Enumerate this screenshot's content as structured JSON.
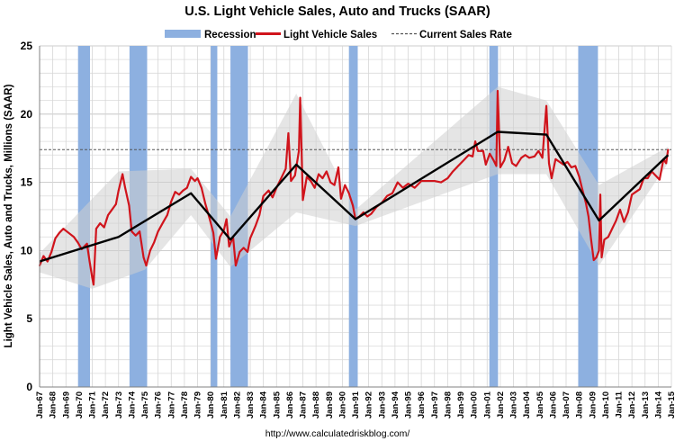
{
  "chart_data": {
    "type": "line",
    "title": "U.S. Light Vehicle Sales, Auto and Trucks (SAAR)",
    "ylabel": "Light Vehicle Sales, Auto and Trucks, Millions (SAAR)",
    "xlabel": "",
    "source": "http://www.calculatedriskblog.com/",
    "ylim": [
      0,
      25
    ],
    "yticks": [
      0,
      5,
      10,
      15,
      20,
      25
    ],
    "xlim": [
      1967,
      2015
    ],
    "xticks": [
      "Jan-67",
      "Jan-68",
      "Jan-69",
      "Jan-70",
      "Jan-71",
      "Jan-72",
      "Jan-73",
      "Jan-74",
      "Jan-75",
      "Jan-76",
      "Jan-77",
      "Jan-78",
      "Jan-79",
      "Jan-80",
      "Jan-81",
      "Jan-82",
      "Jan-83",
      "Jan-84",
      "Jan-85",
      "Jan-86",
      "Jan-87",
      "Jan-88",
      "Jan-89",
      "Jan-90",
      "Jan-91",
      "Jan-92",
      "Jan-93",
      "Jan-94",
      "Jan-95",
      "Jan-96",
      "Jan-97",
      "Jan-98",
      "Jan-99",
      "Jan-00",
      "Jan-01",
      "Jan-02",
      "Jan-03",
      "Jan-04",
      "Jan-05",
      "Jan-06",
      "Jan-07",
      "Jan-08",
      "Jan-09",
      "Jan-10",
      "Jan-11",
      "Jan-12",
      "Jan-13",
      "Jan-14",
      "Jan-15"
    ],
    "grid": true,
    "legend": {
      "placement": "top",
      "items": [
        "Recession",
        "Light Vehicle Sales",
        "Current Sales Rate"
      ]
    },
    "colors": {
      "recession": "#8db0e0",
      "sales": "#d0141c",
      "trend": "#000000",
      "band": "#cfcfcf",
      "current_rate": "#555555"
    },
    "current_sales_rate": 17.4,
    "recessions": [
      {
        "start": 1969.92,
        "end": 1970.83
      },
      {
        "start": 1973.83,
        "end": 1975.17
      },
      {
        "start": 1980.0,
        "end": 1980.5
      },
      {
        "start": 1981.5,
        "end": 1982.83
      },
      {
        "start": 1990.5,
        "end": 1991.17
      },
      {
        "start": 2001.17,
        "end": 2001.83
      },
      {
        "start": 2007.92,
        "end": 2009.42
      }
    ],
    "series": [
      {
        "name": "Light Vehicle Sales",
        "points": [
          [
            1967.0,
            8.9
          ],
          [
            1967.3,
            9.6
          ],
          [
            1967.6,
            9.2
          ],
          [
            1967.9,
            9.9
          ],
          [
            1968.2,
            10.9
          ],
          [
            1968.5,
            11.3
          ],
          [
            1968.8,
            11.6
          ],
          [
            1969.2,
            11.3
          ],
          [
            1969.6,
            11.0
          ],
          [
            1969.9,
            10.6
          ],
          [
            1970.2,
            10.1
          ],
          [
            1970.6,
            10.5
          ],
          [
            1970.8,
            9.2
          ],
          [
            1971.0,
            8.0
          ],
          [
            1971.1,
            7.5
          ],
          [
            1971.3,
            11.6
          ],
          [
            1971.6,
            12.0
          ],
          [
            1971.9,
            11.7
          ],
          [
            1972.2,
            12.6
          ],
          [
            1972.5,
            13.0
          ],
          [
            1972.8,
            13.4
          ],
          [
            1973.0,
            14.4
          ],
          [
            1973.3,
            15.6
          ],
          [
            1973.5,
            14.6
          ],
          [
            1973.8,
            13.3
          ],
          [
            1974.0,
            11.4
          ],
          [
            1974.3,
            11.1
          ],
          [
            1974.6,
            11.4
          ],
          [
            1974.9,
            9.5
          ],
          [
            1975.1,
            8.9
          ],
          [
            1975.4,
            10.0
          ],
          [
            1975.7,
            10.6
          ],
          [
            1976.0,
            11.4
          ],
          [
            1976.4,
            12.1
          ],
          [
            1976.7,
            12.6
          ],
          [
            1977.0,
            13.6
          ],
          [
            1977.3,
            14.3
          ],
          [
            1977.6,
            14.1
          ],
          [
            1977.9,
            14.4
          ],
          [
            1978.2,
            14.6
          ],
          [
            1978.5,
            15.4
          ],
          [
            1978.8,
            15.1
          ],
          [
            1979.0,
            15.3
          ],
          [
            1979.3,
            14.6
          ],
          [
            1979.6,
            13.4
          ],
          [
            1979.9,
            12.4
          ],
          [
            1980.2,
            11.3
          ],
          [
            1980.4,
            9.4
          ],
          [
            1980.7,
            11.0
          ],
          [
            1981.0,
            11.5
          ],
          [
            1981.2,
            12.3
          ],
          [
            1981.4,
            10.3
          ],
          [
            1981.7,
            11.0
          ],
          [
            1981.9,
            8.9
          ],
          [
            1982.2,
            9.9
          ],
          [
            1982.5,
            10.2
          ],
          [
            1982.8,
            9.9
          ],
          [
            1983.0,
            10.9
          ],
          [
            1983.4,
            11.8
          ],
          [
            1983.7,
            12.6
          ],
          [
            1984.0,
            14.0
          ],
          [
            1984.4,
            14.4
          ],
          [
            1984.7,
            13.9
          ],
          [
            1985.0,
            14.6
          ],
          [
            1985.3,
            15.2
          ],
          [
            1985.7,
            16.0
          ],
          [
            1985.9,
            18.6
          ],
          [
            1986.1,
            15.1
          ],
          [
            1986.4,
            15.5
          ],
          [
            1986.7,
            17.3
          ],
          [
            1986.8,
            21.2
          ],
          [
            1987.0,
            13.7
          ],
          [
            1987.3,
            15.4
          ],
          [
            1987.6,
            15.1
          ],
          [
            1987.9,
            14.6
          ],
          [
            1988.2,
            15.6
          ],
          [
            1988.5,
            15.3
          ],
          [
            1988.8,
            15.8
          ],
          [
            1989.1,
            15.0
          ],
          [
            1989.4,
            14.8
          ],
          [
            1989.7,
            16.1
          ],
          [
            1989.9,
            13.8
          ],
          [
            1990.2,
            14.8
          ],
          [
            1990.5,
            14.2
          ],
          [
            1990.8,
            13.3
          ],
          [
            1991.0,
            12.3
          ],
          [
            1991.3,
            12.5
          ],
          [
            1991.6,
            12.8
          ],
          [
            1991.9,
            12.5
          ],
          [
            1992.2,
            12.7
          ],
          [
            1992.6,
            13.2
          ],
          [
            1993.0,
            13.5
          ],
          [
            1993.4,
            14.0
          ],
          [
            1993.8,
            14.2
          ],
          [
            1994.2,
            15.0
          ],
          [
            1994.6,
            14.6
          ],
          [
            1995.0,
            14.9
          ],
          [
            1995.5,
            14.6
          ],
          [
            1996.0,
            15.1
          ],
          [
            1996.5,
            15.1
          ],
          [
            1997.0,
            15.1
          ],
          [
            1997.5,
            15.0
          ],
          [
            1998.0,
            15.3
          ],
          [
            1998.4,
            15.8
          ],
          [
            1998.8,
            16.2
          ],
          [
            1999.2,
            16.6
          ],
          [
            1999.6,
            17.0
          ],
          [
            1999.9,
            16.9
          ],
          [
            2000.1,
            18.0
          ],
          [
            2000.3,
            17.3
          ],
          [
            2000.7,
            17.3
          ],
          [
            2000.9,
            16.3
          ],
          [
            2001.2,
            17.1
          ],
          [
            2001.5,
            16.6
          ],
          [
            2001.7,
            16.2
          ],
          [
            2001.8,
            21.7
          ],
          [
            2002.0,
            16.1
          ],
          [
            2002.3,
            16.6
          ],
          [
            2002.6,
            17.6
          ],
          [
            2002.9,
            16.4
          ],
          [
            2003.2,
            16.2
          ],
          [
            2003.6,
            16.8
          ],
          [
            2003.9,
            17.0
          ],
          [
            2004.2,
            16.8
          ],
          [
            2004.6,
            16.9
          ],
          [
            2004.9,
            17.3
          ],
          [
            2005.2,
            16.8
          ],
          [
            2005.5,
            20.6
          ],
          [
            2005.7,
            16.4
          ],
          [
            2005.9,
            15.3
          ],
          [
            2006.2,
            16.7
          ],
          [
            2006.5,
            16.5
          ],
          [
            2006.8,
            16.3
          ],
          [
            2007.1,
            16.5
          ],
          [
            2007.4,
            16.1
          ],
          [
            2007.7,
            16.2
          ],
          [
            2008.0,
            15.4
          ],
          [
            2008.2,
            14.6
          ],
          [
            2008.5,
            13.5
          ],
          [
            2008.7,
            12.5
          ],
          [
            2008.9,
            10.8
          ],
          [
            2009.1,
            9.3
          ],
          [
            2009.3,
            9.5
          ],
          [
            2009.5,
            10.0
          ],
          [
            2009.6,
            14.1
          ],
          [
            2009.7,
            9.5
          ],
          [
            2009.9,
            10.8
          ],
          [
            2010.2,
            11.0
          ],
          [
            2010.5,
            11.6
          ],
          [
            2010.8,
            12.2
          ],
          [
            2011.1,
            13.0
          ],
          [
            2011.4,
            12.1
          ],
          [
            2011.7,
            12.8
          ],
          [
            2012.0,
            14.1
          ],
          [
            2012.3,
            14.3
          ],
          [
            2012.6,
            14.5
          ],
          [
            2012.9,
            15.3
          ],
          [
            2013.2,
            15.3
          ],
          [
            2013.5,
            15.8
          ],
          [
            2013.8,
            15.5
          ],
          [
            2014.1,
            15.2
          ],
          [
            2014.4,
            16.7
          ],
          [
            2014.6,
            16.4
          ],
          [
            2014.75,
            17.4
          ]
        ]
      }
    ],
    "trend": [
      [
        1967.0,
        9.2
      ],
      [
        1973.0,
        11.0
      ],
      [
        1978.5,
        14.2
      ],
      [
        1981.5,
        10.8
      ],
      [
        1986.5,
        16.3
      ],
      [
        1991.0,
        12.3
      ],
      [
        2001.8,
        18.7
      ],
      [
        2005.5,
        18.5
      ],
      [
        2009.5,
        12.2
      ],
      [
        2014.75,
        17.0
      ]
    ],
    "band_upper": [
      [
        1967.0,
        9.8
      ],
      [
        1973.0,
        15.8
      ],
      [
        1978.5,
        16.0
      ],
      [
        1981.5,
        12.5
      ],
      [
        1986.5,
        21.5
      ],
      [
        1991.0,
        13.0
      ],
      [
        2001.8,
        22.0
      ],
      [
        2005.5,
        21.0
      ],
      [
        2009.5,
        14.8
      ],
      [
        2014.75,
        17.6
      ]
    ],
    "band_lower": [
      [
        1967.0,
        8.4
      ],
      [
        1971.0,
        7.2
      ],
      [
        1975.0,
        8.6
      ],
      [
        1978.5,
        12.6
      ],
      [
        1981.5,
        8.8
      ],
      [
        1986.5,
        12.8
      ],
      [
        1991.0,
        11.8
      ],
      [
        2001.8,
        15.6
      ],
      [
        2005.5,
        15.6
      ],
      [
        2009.5,
        8.9
      ],
      [
        2014.75,
        16.4
      ]
    ]
  }
}
